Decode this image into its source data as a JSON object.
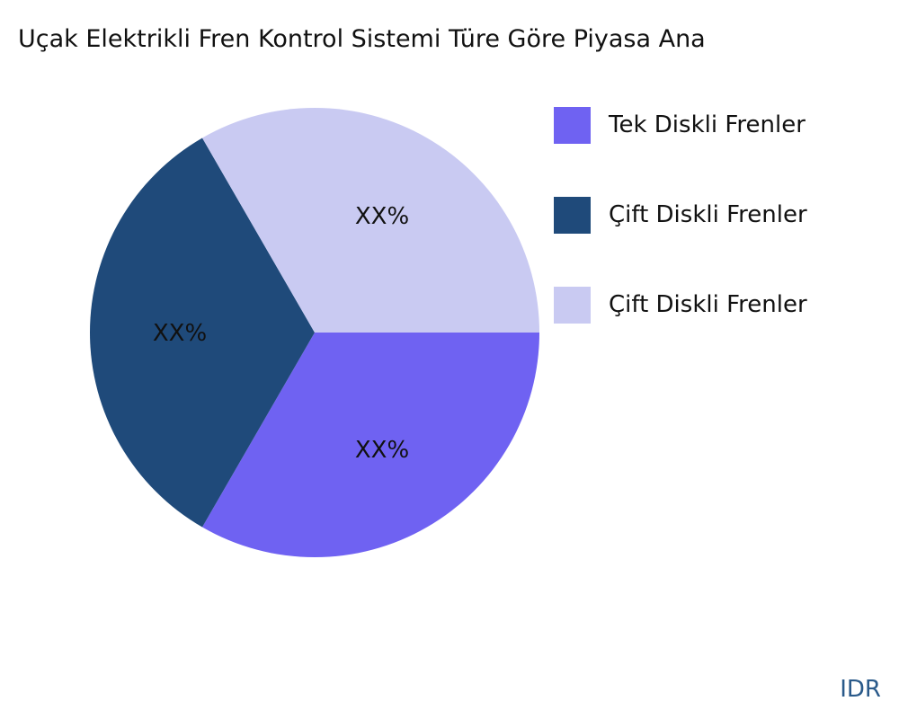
{
  "chart_data": {
    "type": "pie",
    "title": "Uçak Elektrikli Fren Kontrol Sistemi Türe Göre Piyasa Ana",
    "categories": [
      "Tek Diskli Frenler",
      "Çift Diskli Frenler",
      "Çift Diskli Frenler"
    ],
    "values": [
      33.33,
      33.33,
      33.33
    ],
    "data_labels": [
      "XX%",
      "XX%",
      "XX%"
    ],
    "colors": [
      "#6f62f2",
      "#1f4a7a",
      "#c9caf2"
    ],
    "legend_position": "right"
  },
  "brand": "IDR"
}
